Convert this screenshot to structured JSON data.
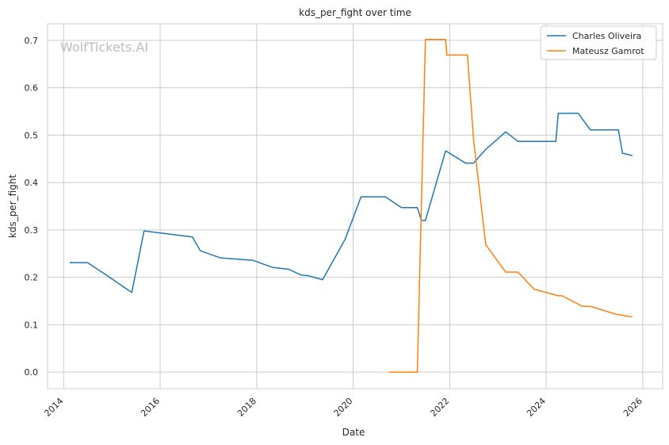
{
  "chart_data": {
    "type": "line",
    "title": "kds_per_fight over time",
    "xlabel": "Date",
    "ylabel": "kds_per_fight",
    "xlim": [
      "2013-09-01",
      "2026-06-01"
    ],
    "ylim": [
      -0.035,
      0.735
    ],
    "x_ticks": [
      "2014",
      "2016",
      "2018",
      "2020",
      "2022",
      "2024",
      "2026"
    ],
    "y_ticks": [
      "0.0",
      "0.1",
      "0.2",
      "0.3",
      "0.4",
      "0.5",
      "0.6",
      "0.7"
    ],
    "grid": true,
    "legend_position": "top-right",
    "watermark": "WolfTickets.AI",
    "series": [
      {
        "name": "Charles Oliveira",
        "color": "#1f77b4",
        "points": [
          [
            "2014-02-15",
            0.231
          ],
          [
            "2014-07-01",
            0.231
          ],
          [
            "2014-12-15",
            0.2
          ],
          [
            "2015-06-01",
            0.168
          ],
          [
            "2015-09-01",
            0.298
          ],
          [
            "2016-09-01",
            0.285
          ],
          [
            "2016-11-01",
            0.256
          ],
          [
            "2017-04-01",
            0.241
          ],
          [
            "2017-12-01",
            0.236
          ],
          [
            "2018-05-01",
            0.221
          ],
          [
            "2018-09-01",
            0.217
          ],
          [
            "2018-12-01",
            0.205
          ],
          [
            "2019-02-01",
            0.203
          ],
          [
            "2019-05-15",
            0.195
          ],
          [
            "2019-11-01",
            0.28
          ],
          [
            "2020-03-01",
            0.37
          ],
          [
            "2020-09-01",
            0.37
          ],
          [
            "2021-01-01",
            0.347
          ],
          [
            "2021-05-01",
            0.347
          ],
          [
            "2021-06-01",
            0.32
          ],
          [
            "2021-07-01",
            0.32
          ],
          [
            "2021-12-01",
            0.467
          ],
          [
            "2022-05-01",
            0.441
          ],
          [
            "2022-07-01",
            0.441
          ],
          [
            "2022-10-01",
            0.47
          ],
          [
            "2023-03-01",
            0.507
          ],
          [
            "2023-06-01",
            0.487
          ],
          [
            "2024-03-15",
            0.487
          ],
          [
            "2024-04-01",
            0.546
          ],
          [
            "2024-09-01",
            0.546
          ],
          [
            "2024-12-01",
            0.511
          ],
          [
            "2025-07-01",
            0.511
          ],
          [
            "2025-08-01",
            0.462
          ],
          [
            "2025-10-15",
            0.457
          ]
        ]
      },
      {
        "name": "Mateusz Gamrot",
        "color": "#ff7f0e",
        "points": [
          [
            "2020-10-01",
            0.0
          ],
          [
            "2021-05-01",
            0.0
          ],
          [
            "2021-07-01",
            0.702
          ],
          [
            "2021-12-01",
            0.702
          ],
          [
            "2021-12-10",
            0.669
          ],
          [
            "2022-05-15",
            0.669
          ],
          [
            "2022-07-01",
            0.49
          ],
          [
            "2022-10-01",
            0.269
          ],
          [
            "2023-03-01",
            0.211
          ],
          [
            "2023-06-01",
            0.211
          ],
          [
            "2023-10-01",
            0.175
          ],
          [
            "2024-04-01",
            0.161
          ],
          [
            "2024-05-01",
            0.161
          ],
          [
            "2024-10-01",
            0.139
          ],
          [
            "2024-12-01",
            0.139
          ],
          [
            "2025-06-01",
            0.123
          ],
          [
            "2025-10-15",
            0.116
          ]
        ]
      }
    ]
  }
}
